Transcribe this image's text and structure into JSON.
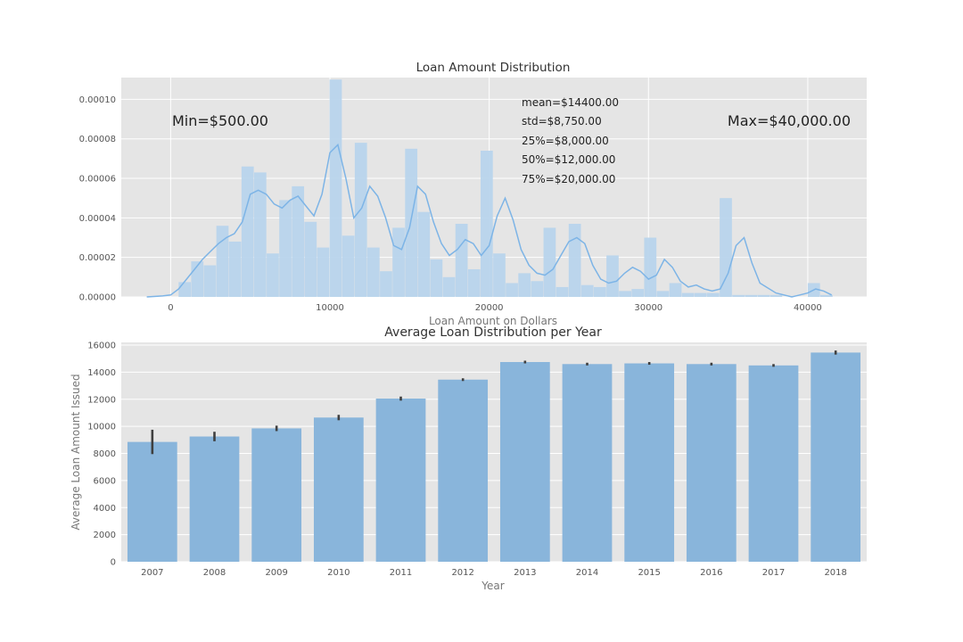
{
  "colors": {
    "panel_bg": "#e5e5e5",
    "grid": "#ffffff",
    "hist_fill": "#b8d4ec",
    "kde_line": "#7db4e6",
    "bar_fill": "#89b5db",
    "error_bar": "#3f3f3f",
    "tick_text": "#555555",
    "label_text": "#777777",
    "title_text": "#333333",
    "annotation_text": "#222222"
  },
  "chart_data": [
    {
      "type": "area",
      "title": "Loan Amount Distribution",
      "xlabel": "Loan Amount on Dollars",
      "ylabel": "",
      "xlim": [
        -3100,
        43700
      ],
      "ylim": [
        0,
        0.000111
      ],
      "grid": true,
      "xticks": [
        0,
        10000,
        20000,
        30000,
        40000
      ],
      "xtick_labels": [
        "0",
        "10000",
        "20000",
        "30000",
        "40000"
      ],
      "yticks": [
        0,
        2e-05,
        4e-05,
        6e-05,
        8e-05,
        0.0001
      ],
      "ytick_labels": [
        "0.00000",
        "0.00002",
        "0.00004",
        "0.00006",
        "0.00008",
        "0.00010"
      ],
      "histogram": {
        "bin_start": 500,
        "bin_width": 790,
        "density": [
          7.5e-06,
          1.8e-05,
          1.6e-05,
          3.6e-05,
          2.8e-05,
          6.6e-05,
          6.3e-05,
          2.2e-05,
          4.9e-05,
          5.6e-05,
          3.8e-05,
          2.5e-05,
          0.00011,
          3.1e-05,
          7.8e-05,
          2.5e-05,
          1.3e-05,
          3.5e-05,
          7.5e-05,
          4.3e-05,
          1.9e-05,
          1e-05,
          3.7e-05,
          1.4e-05,
          7.4e-05,
          2.2e-05,
          7e-06,
          1.2e-05,
          8e-06,
          3.5e-05,
          5e-06,
          3.7e-05,
          6e-06,
          5e-06,
          2.1e-05,
          3e-06,
          4e-06,
          3e-05,
          3e-06,
          7e-06,
          2e-06,
          2e-06,
          2e-06,
          5e-05,
          1e-06,
          1e-06,
          1e-06,
          1e-06,
          0.0,
          0.0,
          7e-06,
          1e-06
        ]
      },
      "kde": {
        "x": [
          -1500,
          -500,
          0,
          500,
          1000,
          1500,
          2000,
          2500,
          3000,
          3500,
          4000,
          4500,
          5000,
          5500,
          6000,
          6500,
          7000,
          7500,
          8000,
          8500,
          9000,
          9500,
          10000,
          10500,
          11000,
          11500,
          12000,
          12500,
          13000,
          13500,
          14000,
          14500,
          15000,
          15500,
          16000,
          16500,
          17000,
          17500,
          18000,
          18500,
          19000,
          19500,
          20000,
          20500,
          21000,
          21500,
          22000,
          22500,
          23000,
          23500,
          24000,
          24500,
          25000,
          25500,
          26000,
          26500,
          27000,
          27500,
          28000,
          28500,
          29000,
          29500,
          30000,
          30500,
          31000,
          31500,
          32000,
          32500,
          33000,
          33500,
          34000,
          34500,
          35000,
          35500,
          36000,
          36500,
          37000,
          38000,
          39000,
          39500,
          40000,
          40500,
          41000,
          41500
        ],
        "y": [
          0.0,
          5e-07,
          1e-06,
          4e-06,
          9e-06,
          1.4e-05,
          1.9e-05,
          2.3e-05,
          2.7e-05,
          3e-05,
          3.2e-05,
          3.8e-05,
          5.2e-05,
          5.4e-05,
          5.2e-05,
          4.7e-05,
          4.5e-05,
          4.9e-05,
          5.1e-05,
          4.6e-05,
          4.1e-05,
          5.2e-05,
          7.3e-05,
          7.7e-05,
          6e-05,
          4e-05,
          4.5e-05,
          5.6e-05,
          5.1e-05,
          4e-05,
          2.6e-05,
          2.4e-05,
          3.5e-05,
          5.6e-05,
          5.2e-05,
          3.8e-05,
          2.7e-05,
          2.1e-05,
          2.4e-05,
          2.9e-05,
          2.7e-05,
          2.1e-05,
          2.6e-05,
          4.1e-05,
          5e-05,
          3.9e-05,
          2.4e-05,
          1.6e-05,
          1.2e-05,
          1.1e-05,
          1.4e-05,
          2.1e-05,
          2.8e-05,
          3e-05,
          2.7e-05,
          1.6e-05,
          9e-06,
          7e-06,
          8e-06,
          1.2e-05,
          1.5e-05,
          1.3e-05,
          9e-06,
          1.1e-05,
          1.9e-05,
          1.5e-05,
          8e-06,
          5e-06,
          6e-06,
          4e-06,
          3e-06,
          4e-06,
          1.2e-05,
          2.6e-05,
          3e-05,
          1.7e-05,
          7e-06,
          2e-06,
          0.0,
          1e-06,
          2e-06,
          4e-06,
          3e-06,
          1e-06
        ]
      },
      "annotations": {
        "min": "Min=$500.00",
        "max": "Max=$40,000.00",
        "stats": [
          "mean=$14400.00",
          "std=$8,750.00",
          "25%=$8,000.00",
          "50%=$12,000.00",
          "75%=$20,000.00"
        ]
      }
    },
    {
      "type": "bar",
      "title": "Average Loan Distribution per Year",
      "xlabel": "Year",
      "ylabel": "Average Loan Amount Issued",
      "ylim": [
        0,
        16200
      ],
      "grid": true,
      "yticks": [
        0,
        2000,
        4000,
        6000,
        8000,
        10000,
        12000,
        14000,
        16000
      ],
      "categories": [
        "2007",
        "2008",
        "2009",
        "2010",
        "2011",
        "2012",
        "2013",
        "2014",
        "2015",
        "2016",
        "2017",
        "2018"
      ],
      "values": [
        8850,
        9250,
        9850,
        10650,
        12050,
        13450,
        14750,
        14600,
        14650,
        14600,
        14500,
        15450
      ],
      "error_low": [
        7950,
        8900,
        9650,
        10450,
        11900,
        13350,
        14650,
        14500,
        14550,
        14500,
        14400,
        15300
      ],
      "error_high": [
        9750,
        9600,
        10050,
        10850,
        12200,
        13550,
        14850,
        14700,
        14750,
        14700,
        14600,
        15600
      ]
    }
  ]
}
